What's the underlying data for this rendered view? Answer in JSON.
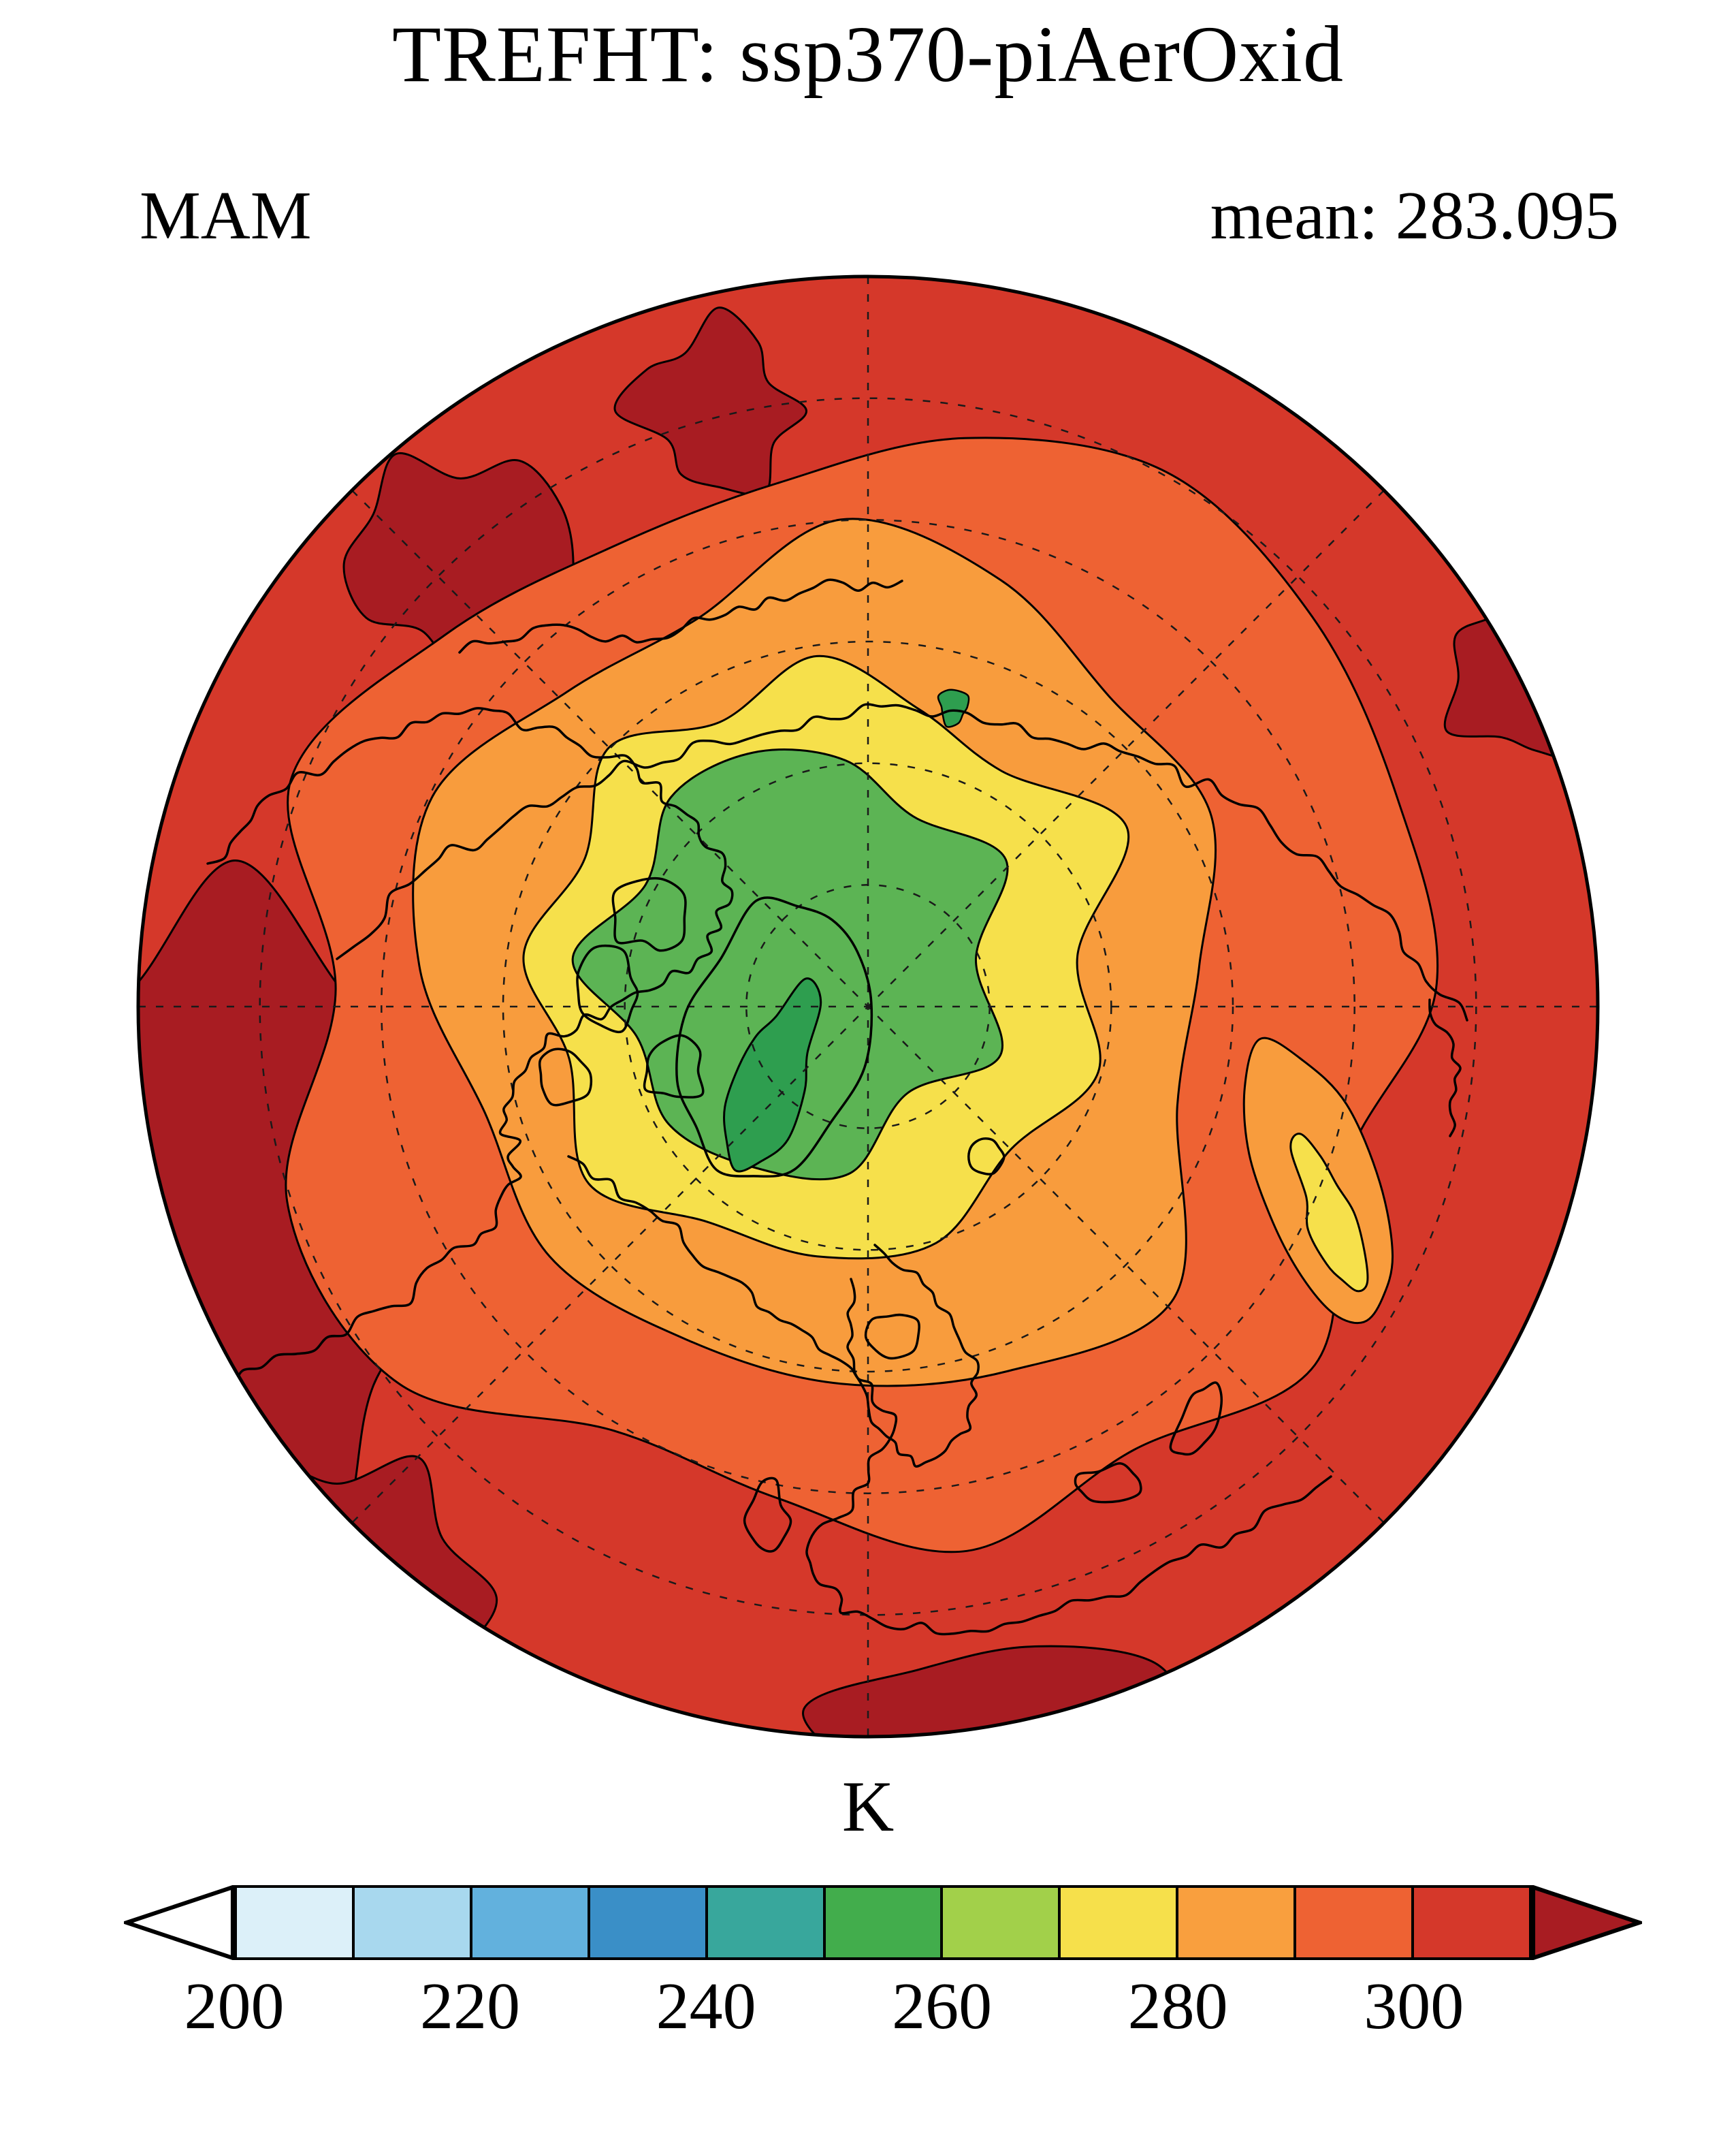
{
  "title": "TREFHT: ssp370-piAerOxid",
  "season_label": "MAM",
  "mean_label": "mean: 283.095",
  "units_label": "K",
  "chart_data": {
    "type": "heatmap",
    "variable": "TREFHT",
    "experiment": "ssp370-piAerOxid",
    "season": "MAM",
    "mean": 283.095,
    "units": "K",
    "projection": "north-polar-stereographic",
    "title": "TREFHT: ssp370-piAerOxid",
    "colorbar": {
      "label": "K",
      "orientation": "horizontal",
      "levels": [
        200,
        210,
        220,
        230,
        240,
        250,
        260,
        270,
        280,
        290,
        300,
        310
      ],
      "ticks": [
        200,
        220,
        240,
        260,
        280,
        300
      ],
      "cell_colors": [
        "#dcf0f9",
        "#a8d8ee",
        "#62b1dd",
        "#3a8fc7",
        "#38a79c",
        "#42ad4c",
        "#a2d04a",
        "#f6e04b",
        "#f99f3e",
        "#ee6233",
        "#d5382a"
      ],
      "under_color": "#ffffff",
      "over_color": "#a81c22"
    },
    "map_bands": [
      {
        "name": "maroon-patches",
        "range_K": "> 310",
        "color": "#a81c22",
        "where": "patches near map rim (low latitudes)"
      },
      {
        "name": "red-base",
        "range_K": "300-310",
        "color": "#d5382a",
        "where": "outer ring / mid-latitudes"
      },
      {
        "name": "orange-red-ring",
        "range_K": "290-300",
        "color": "#ee6233",
        "where": "broad ring poleward of red"
      },
      {
        "name": "orange-ring",
        "range_K": "280-290",
        "color": "#f89c3d",
        "where": "ring around sub-Arctic"
      },
      {
        "name": "yellow-ring",
        "range_K": "270-280",
        "color": "#f6e04b",
        "where": "ring around the Arctic"
      },
      {
        "name": "green-core",
        "range_K": "250-260",
        "color": "#5cb454",
        "where": "central Arctic Ocean and archipelago"
      },
      {
        "name": "dark-green-spot",
        "range_K": "240-250",
        "color": "#2e9e4f",
        "where": "Greenland interior and small polar speck"
      }
    ],
    "graticule": {
      "style": "dashed",
      "radial_lines_every_deg": 45,
      "latitude_circles": 5
    },
    "notes": "Filled temperature contours on a Northern Hemisphere polar stereographic map with black coastlines; warmest (dark red) toward the map edge, coldest (green) over the Arctic and Greenland."
  }
}
